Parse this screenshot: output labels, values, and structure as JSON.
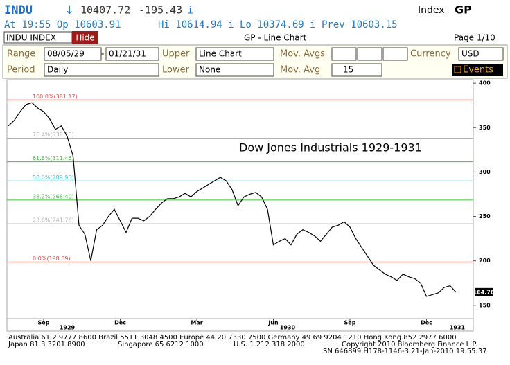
{
  "header": {
    "ticker": "INDU",
    "arrow": "↓",
    "last": "10407.72",
    "change": "-195.43",
    "flag": "i",
    "right_label": "Index",
    "function": "GP"
  },
  "quote": {
    "time_open": "At 19:55 Op 10603.91",
    "high_low_prev": "Hi 10614.94 i Lo 10374.69 i Prev 10603.15"
  },
  "toolbar": {
    "security": "INDU INDEX",
    "button": "Hide",
    "title": "GP - Line Chart",
    "page": "Page 1/10"
  },
  "form": {
    "range_label": "Range",
    "range_start": "08/05/29",
    "range_dash": "-",
    "range_end": "01/21/31",
    "upper_label": "Upper",
    "upper_value": "Line Chart",
    "mov_avgs_label": "Mov. Avgs",
    "currency_label": "Currency",
    "currency_value": "USD",
    "period_label": "Period",
    "period_value": "Daily",
    "lower_label": "Lower",
    "lower_value": "None",
    "mov_avg_label": "Mov. Avg",
    "mov_avg_value": "15",
    "events": "Events"
  },
  "chart_data": {
    "type": "line",
    "title": "Dow Jones Industrials 1929-1931",
    "color": "#000000",
    "categories": [
      null,
      null,
      null,
      null,
      null,
      null,
      "Sep",
      null,
      null,
      null,
      null,
      null,
      null,
      null,
      null,
      null,
      null,
      null,
      null,
      "Dec",
      null,
      null,
      null,
      null,
      null,
      null,
      null,
      null,
      null,
      null,
      null,
      null,
      "Mar",
      null,
      null,
      null,
      null,
      null,
      null,
      null,
      null,
      null,
      null,
      null,
      null,
      "Jun",
      null,
      null,
      null,
      null,
      null,
      null,
      null,
      null,
      null,
      null,
      null,
      null,
      "Sep",
      null,
      null,
      null,
      null,
      null,
      null,
      null,
      null,
      null,
      null,
      null,
      null,
      "Dec",
      null,
      null,
      null,
      null,
      null
    ],
    "values": [
      352,
      358,
      368,
      376,
      378,
      372,
      368,
      360,
      348,
      352,
      340,
      318,
      240,
      230,
      200,
      235,
      240,
      250,
      258,
      245,
      232,
      248,
      248,
      245,
      250,
      258,
      265,
      270,
      270,
      272,
      276,
      272,
      278,
      282,
      286,
      290,
      294,
      290,
      280,
      262,
      272,
      275,
      277,
      272,
      258,
      218,
      222,
      225,
      218,
      230,
      235,
      232,
      228,
      222,
      230,
      238,
      240,
      244,
      238,
      225,
      215,
      205,
      195,
      190,
      185,
      182,
      178,
      185,
      182,
      180,
      175,
      160,
      162,
      164,
      170,
      172,
      164.76
    ],
    "years": [
      "1929",
      "1930",
      "1931"
    ],
    "ylim": [
      135,
      404
    ],
    "yticks": [
      150,
      200,
      250,
      300,
      350,
      400
    ],
    "fib_levels": [
      {
        "value": 381.17,
        "label": "100.0%(381.17)",
        "color": "#e05050"
      },
      {
        "value": 338.1,
        "label": "76.4%(338.10)",
        "color": "#b0b0b0"
      },
      {
        "value": 311.46,
        "label": "61.8%(311.46)",
        "color": "#40c040"
      },
      {
        "value": 289.93,
        "label": "50.0%(289.93)",
        "color": "#30d0e0"
      },
      {
        "value": 268.4,
        "label": "38.2%(268.40)",
        "color": "#40c040"
      },
      {
        "value": 241.76,
        "label": "23.6%(241.76)",
        "color": "#b0b0b0"
      },
      {
        "value": 198.69,
        "label": "0.0%(198.69)",
        "color": "#e05050"
      }
    ]
  },
  "footer": {
    "line1": "Australia 61 2 9777 8600 Brazil 5511 3048 4500 Europe 44 20 7330 7500 Germany 49 69 9204 1210 Hong Kong 852 2977 6000",
    "japan": "Japan 81 3 3201 8900",
    "singapore": "Singapore 65 6212 1000",
    "us": "U.S. 1 212 318 2000",
    "copyright": "Copyright 2010 Bloomberg Finance L.P.",
    "sn": "SN 646899 H178-1146-3 21-Jan-2010 19:55:37"
  }
}
